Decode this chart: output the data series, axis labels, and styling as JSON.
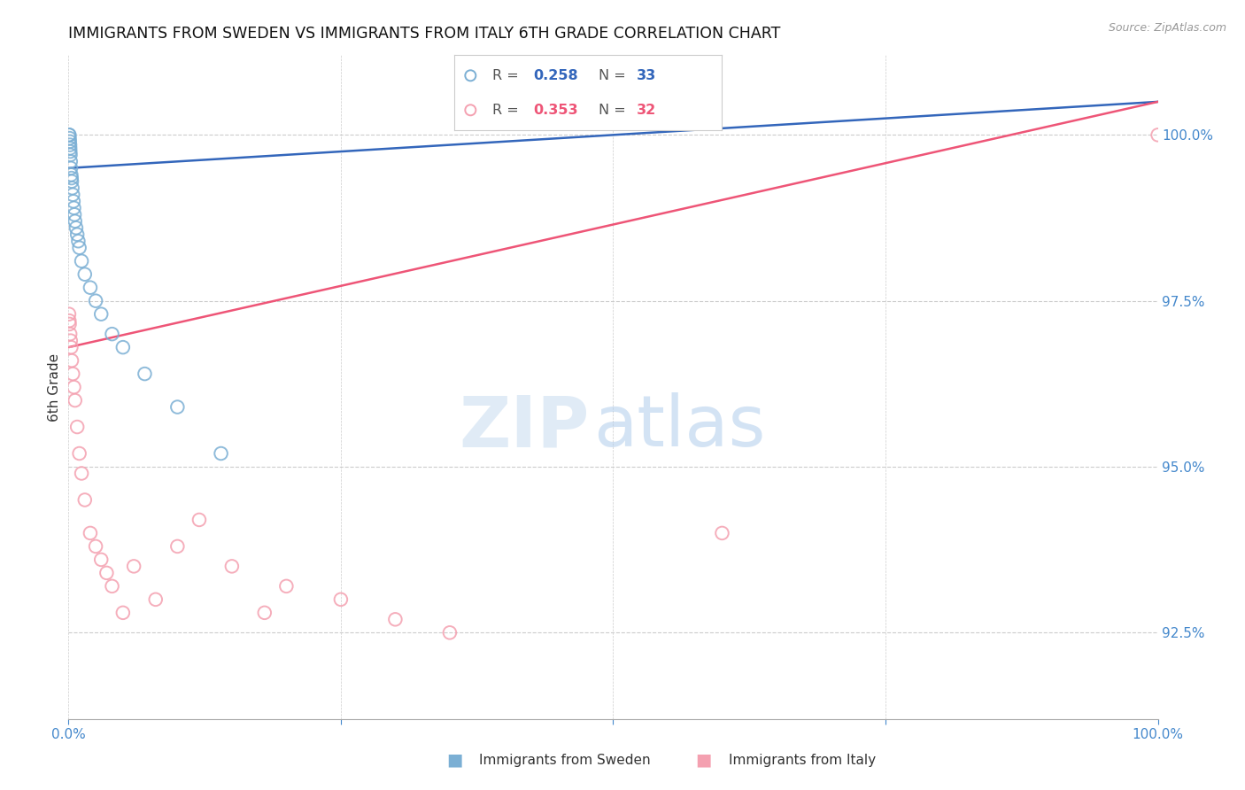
{
  "title": "IMMIGRANTS FROM SWEDEN VS IMMIGRANTS FROM ITALY 6TH GRADE CORRELATION CHART",
  "source": "Source: ZipAtlas.com",
  "ylabel": "6th Grade",
  "y_ticks": [
    92.5,
    95.0,
    97.5,
    100.0
  ],
  "x_range": [
    0.0,
    100.0
  ],
  "y_range": [
    91.2,
    101.2
  ],
  "sweden_color": "#7BAFD4",
  "italy_color": "#F4A0B0",
  "trend_sweden_color": "#3366BB",
  "trend_italy_color": "#EE5577",
  "axis_label_color": "#4488CC",
  "grid_color": "#CCCCCC",
  "background_color": "#FFFFFF",
  "sweden_x": [
    0.05,
    0.08,
    0.1,
    0.12,
    0.14,
    0.15,
    0.16,
    0.18,
    0.2,
    0.22,
    0.25,
    0.28,
    0.3,
    0.35,
    0.4,
    0.45,
    0.5,
    0.55,
    0.6,
    0.7,
    0.8,
    0.9,
    1.0,
    1.2,
    1.5,
    2.0,
    2.5,
    3.0,
    4.0,
    5.0,
    7.0,
    10.0,
    14.0
  ],
  "sweden_y": [
    100.0,
    100.0,
    99.95,
    99.9,
    99.85,
    99.8,
    99.75,
    99.7,
    99.6,
    99.5,
    99.4,
    99.35,
    99.3,
    99.2,
    99.1,
    99.0,
    98.9,
    98.8,
    98.7,
    98.6,
    98.5,
    98.4,
    98.3,
    98.1,
    97.9,
    97.7,
    97.5,
    97.3,
    97.0,
    96.8,
    96.4,
    95.9,
    95.2
  ],
  "italy_x": [
    0.05,
    0.08,
    0.1,
    0.15,
    0.2,
    0.25,
    0.3,
    0.4,
    0.5,
    0.6,
    0.8,
    1.0,
    1.2,
    1.5,
    2.0,
    2.5,
    3.0,
    3.5,
    4.0,
    5.0,
    6.0,
    8.0,
    10.0,
    12.0,
    15.0,
    18.0,
    20.0,
    25.0,
    30.0,
    35.0,
    60.0,
    100.0
  ],
  "italy_y": [
    97.3,
    97.2,
    97.15,
    97.0,
    96.9,
    96.8,
    96.6,
    96.4,
    96.2,
    96.0,
    95.6,
    95.2,
    94.9,
    94.5,
    94.0,
    93.8,
    93.6,
    93.4,
    93.2,
    92.8,
    93.5,
    93.0,
    93.8,
    94.2,
    93.5,
    92.8,
    93.2,
    93.0,
    92.7,
    92.5,
    94.0,
    100.0
  ],
  "sweden_trendline_x": [
    0.0,
    100.0
  ],
  "sweden_trendline_y": [
    99.5,
    100.5
  ],
  "italy_trendline_x": [
    0.0,
    100.0
  ],
  "italy_trendline_y": [
    96.8,
    100.5
  ],
  "watermark_zip": "ZIP",
  "watermark_atlas": "atlas",
  "legend_r_sweden": "0.258",
  "legend_n_sweden": "33",
  "legend_r_italy": "0.353",
  "legend_n_italy": "32"
}
